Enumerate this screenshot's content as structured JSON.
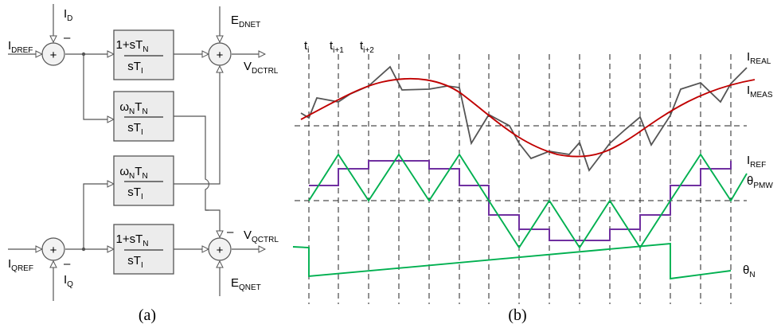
{
  "panel_a": {
    "caption": "(a)",
    "inputs": {
      "idref": {
        "base": "I",
        "sub": "DREF"
      },
      "id": {
        "base": "I",
        "sub": "D"
      },
      "iqref": {
        "base": "I",
        "sub": "QREF"
      },
      "iq": {
        "base": "I",
        "sub": "Q"
      },
      "ednet": {
        "base": "E",
        "sub": "DNET"
      },
      "eqnet": {
        "base": "E",
        "sub": "QNET"
      }
    },
    "outputs": {
      "vdctrl": {
        "base": "V",
        "sub": "DCTRL"
      },
      "vqctrl": {
        "base": "V",
        "sub": "QCTRL"
      }
    },
    "blocks": {
      "pi_num": {
        "a": "1+sT",
        "sub": "N"
      },
      "pi_den": {
        "a": "sT",
        "sub": "I"
      },
      "cross_num": {
        "a": "ω",
        "sub1": "N",
        "b": "T",
        "sub2": "N"
      },
      "cross_den": {
        "a": "sT",
        "sub": "I"
      }
    },
    "signs": {
      "plus": "+",
      "minus": "–"
    }
  },
  "panel_b": {
    "caption": "(b)",
    "time_labels": [
      {
        "base": "t",
        "sub": "i"
      },
      {
        "base": "t",
        "sub": "i+1"
      },
      {
        "base": "t",
        "sub": "i+2"
      }
    ],
    "signal_labels": {
      "ireal": {
        "base": "I",
        "sub": "REAL",
        "color": "#444444"
      },
      "imeas": {
        "base": "I",
        "sub": "MEAS",
        "color": "#c00000"
      },
      "iref": {
        "base": "I",
        "sub": "REF",
        "color": "#7030a0"
      },
      "thetapmw": {
        "base": "θ",
        "sub": "PMW",
        "color": "#00b050"
      },
      "thetan": {
        "base": "θ",
        "sub": "N",
        "color": "#00b050"
      }
    }
  }
}
